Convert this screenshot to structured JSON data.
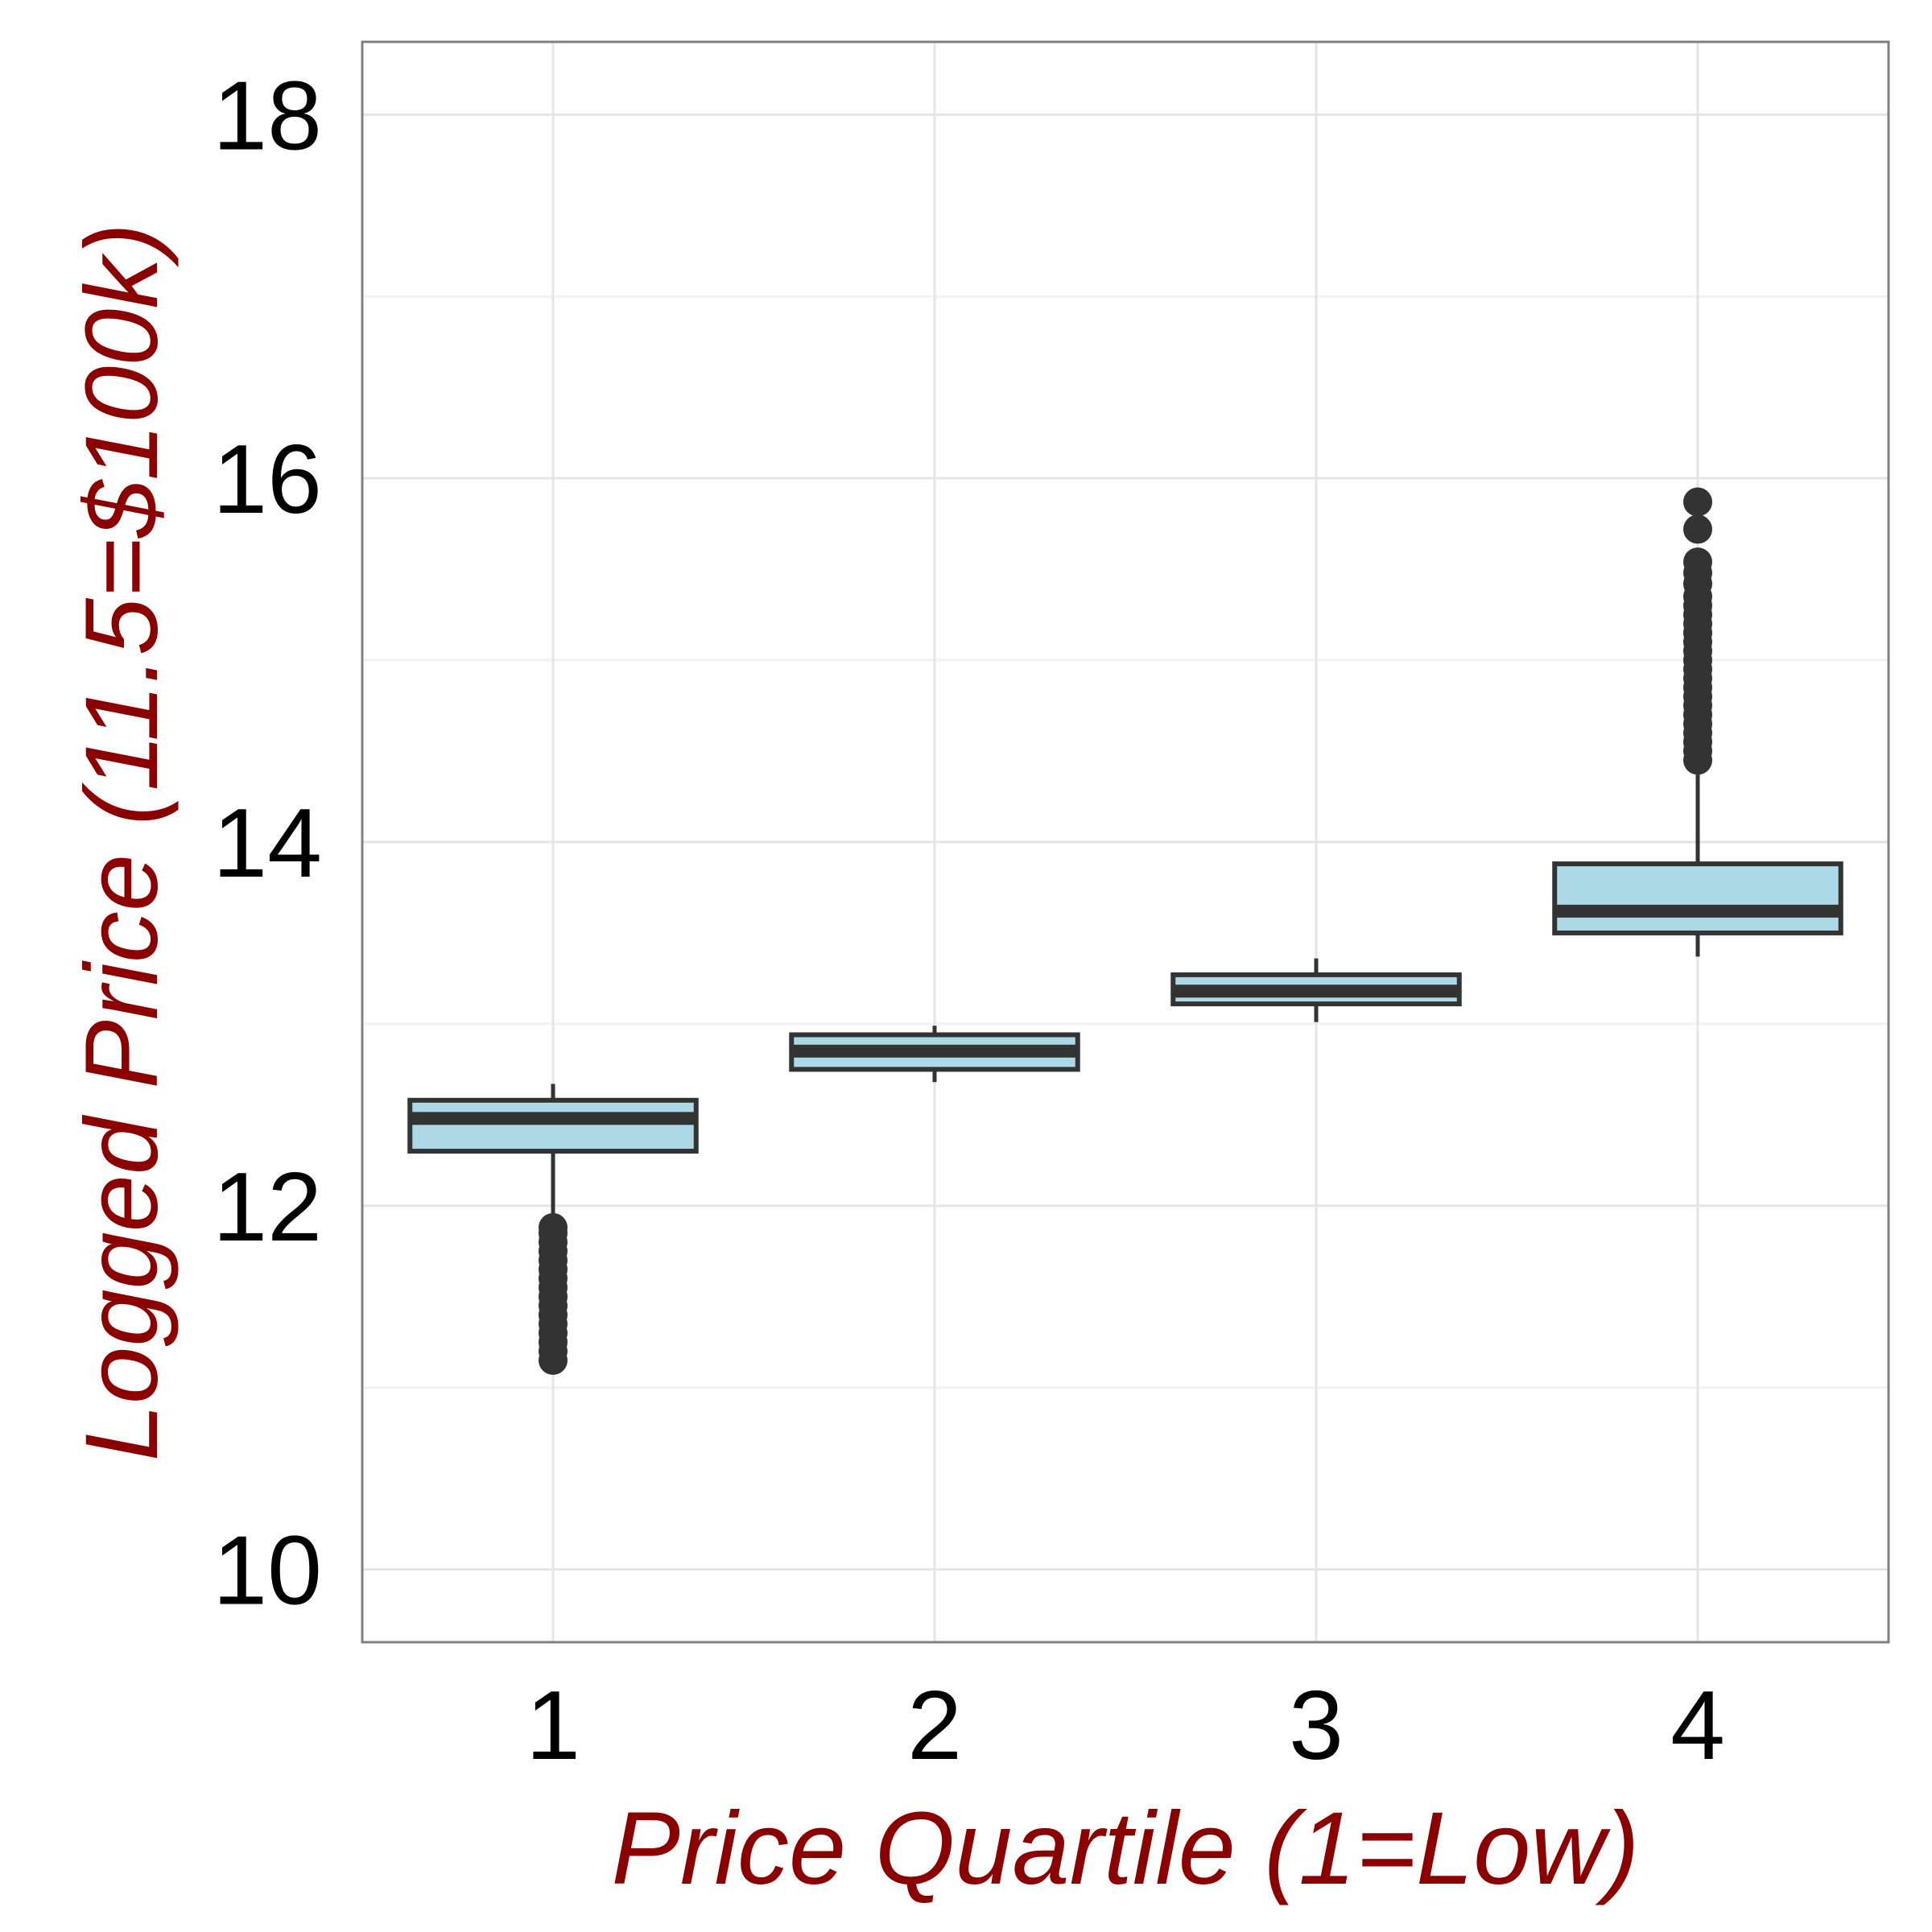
{
  "chart_data": {
    "type": "box",
    "title": "",
    "xlabel": "Price Quartile (1=Low)",
    "ylabel": "Logged Price (11.5=$100k)",
    "categories": [
      "1",
      "2",
      "3",
      "4"
    ],
    "yticks": [
      10,
      12,
      14,
      16,
      18
    ],
    "ylim": [
      9.6,
      18.4
    ],
    "grid": true,
    "boxes": [
      {
        "category": "1",
        "q1": 12.3,
        "median": 12.48,
        "q3": 12.58,
        "whisker_low": 11.9,
        "whisker_high": 12.67,
        "outliers": [
          11.88,
          11.85,
          11.8,
          11.75,
          11.7,
          11.65,
          11.6,
          11.55,
          11.5,
          11.45,
          11.4,
          11.35,
          11.3,
          11.25,
          11.2,
          11.15
        ]
      },
      {
        "category": "2",
        "q1": 12.75,
        "median": 12.85,
        "q3": 12.94,
        "whisker_low": 12.68,
        "whisker_high": 12.99,
        "outliers": []
      },
      {
        "category": "3",
        "q1": 13.11,
        "median": 13.18,
        "q3": 13.27,
        "whisker_low": 13.01,
        "whisker_high": 13.36,
        "outliers": []
      },
      {
        "category": "4",
        "q1": 13.5,
        "median": 13.62,
        "q3": 13.88,
        "whisker_low": 13.37,
        "whisker_high": 14.45,
        "outliers": [
          14.45,
          14.5,
          14.55,
          14.6,
          14.65,
          14.7,
          14.75,
          14.8,
          14.85,
          14.9,
          14.95,
          15.0,
          15.05,
          15.1,
          15.15,
          15.2,
          15.25,
          15.3,
          15.35,
          15.42,
          15.48,
          15.54,
          15.72,
          15.87
        ]
      }
    ],
    "colors": {
      "box_fill": "#add8e6",
      "box_edge": "#333333",
      "grid": "#e5e5e5",
      "frame": "#808080",
      "title_color": "#8b0000"
    }
  }
}
